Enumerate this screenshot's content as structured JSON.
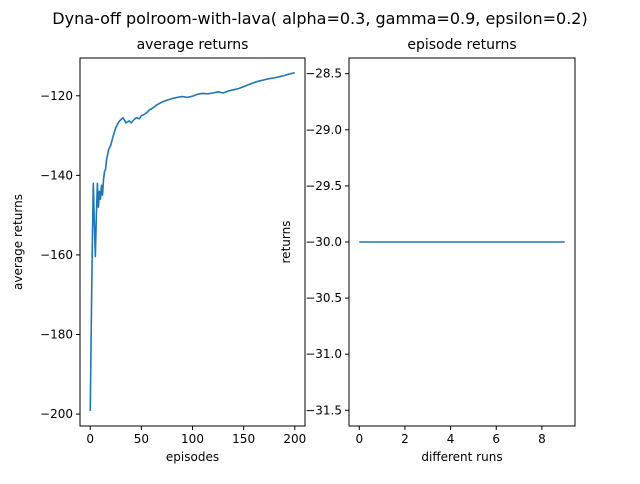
{
  "figure": {
    "suptitle": "Dyna-off polroom-with-lava( alpha=0.3, gamma=0.9, epsilon=0.2)"
  },
  "colors": {
    "line": "#1f77b4",
    "axis": "#000000",
    "background": "#ffffff"
  },
  "chart_data": [
    {
      "type": "line",
      "title": "average returns",
      "xlabel": "episodes",
      "ylabel": "average returns",
      "xlim": [
        -10,
        210
      ],
      "ylim": [
        -203,
        -110.5
      ],
      "xticks": [
        0,
        50,
        100,
        150,
        200
      ],
      "xtick_labels": [
        "0",
        "50",
        "100",
        "150",
        "200"
      ],
      "yticks": [
        -200,
        -180,
        -160,
        -140,
        -120
      ],
      "ytick_labels": [
        "−200",
        "−180",
        "−160",
        "−140",
        "−120"
      ],
      "grid": false,
      "series": [
        {
          "x": [
            0,
            1,
            2,
            3,
            4,
            5,
            6,
            7,
            8,
            9,
            10,
            11,
            12,
            13,
            14,
            15,
            16,
            18,
            20,
            22,
            25,
            28,
            30,
            32,
            35,
            38,
            40,
            42,
            45,
            48,
            50,
            52,
            55,
            58,
            60,
            65,
            70,
            75,
            80,
            85,
            90,
            95,
            100,
            105,
            110,
            115,
            120,
            125,
            130,
            135,
            140,
            145,
            150,
            155,
            160,
            165,
            170,
            175,
            180,
            185,
            190,
            195,
            200
          ],
          "y": [
            -199.2,
            -178,
            -158,
            -142,
            -152,
            -160.4,
            -150,
            -142,
            -148,
            -144,
            -146,
            -142.5,
            -145,
            -141,
            -139,
            -138.5,
            -136,
            -133.5,
            -132.5,
            -130.5,
            -128,
            -126.5,
            -126,
            -125.5,
            -126.8,
            -126.3,
            -126.8,
            -126.2,
            -125.5,
            -125.8,
            -125,
            -124.8,
            -124.3,
            -123.5,
            -123.3,
            -122.3,
            -121.6,
            -121.1,
            -120.7,
            -120.4,
            -120.2,
            -120.4,
            -120.1,
            -119.6,
            -119.4,
            -119.5,
            -119.3,
            -119.0,
            -119.3,
            -118.8,
            -118.5,
            -118.2,
            -117.7,
            -117.2,
            -116.7,
            -116.3,
            -116.0,
            -115.7,
            -115.5,
            -115.2,
            -114.9,
            -114.5,
            -114.2
          ]
        }
      ]
    },
    {
      "type": "line",
      "title": "episode returns",
      "xlabel": "different runs",
      "ylabel": "returns",
      "xlim": [
        -0.45,
        9.45
      ],
      "ylim": [
        -31.64,
        -28.36
      ],
      "xticks": [
        0,
        2,
        4,
        6,
        8
      ],
      "xtick_labels": [
        "0",
        "2",
        "4",
        "6",
        "8"
      ],
      "yticks": [
        -31.5,
        -31.0,
        -30.5,
        -30.0,
        -29.5,
        -29.0,
        -28.5
      ],
      "ytick_labels": [
        "−31.5",
        "−31.0",
        "−30.5",
        "−30.0",
        "−29.5",
        "−29.0",
        "−28.5"
      ],
      "grid": false,
      "series": [
        {
          "x": [
            0,
            1,
            2,
            3,
            4,
            5,
            6,
            7,
            8,
            9
          ],
          "y": [
            -30,
            -30,
            -30,
            -30,
            -30,
            -30,
            -30,
            -30,
            -30,
            -30
          ]
        }
      ]
    }
  ]
}
